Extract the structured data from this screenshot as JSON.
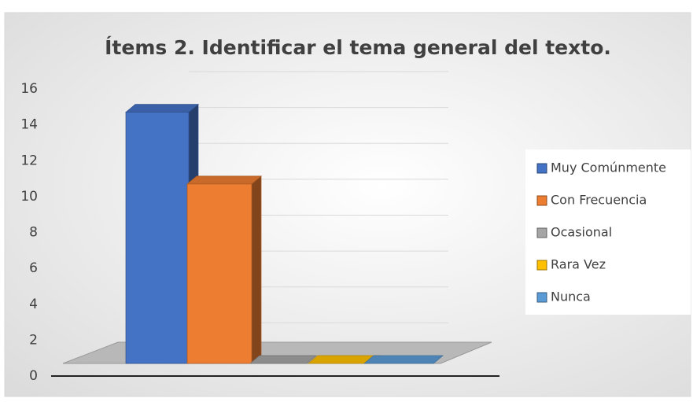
{
  "chart_data": {
    "type": "bar3d",
    "title": "Ítems 2. Identificar el tema general del texto.",
    "categories": [
      null
    ],
    "series": [
      {
        "name": "Muy Comúnmente",
        "color": "#4472c4",
        "values": [
          14
        ]
      },
      {
        "name": "Con Frecuencia",
        "color": "#ed7d31",
        "values": [
          10
        ]
      },
      {
        "name": "Ocasional",
        "color": "#a5a5a5",
        "values": [
          0
        ]
      },
      {
        "name": "Rara Vez",
        "color": "#ffc000",
        "values": [
          0
        ]
      },
      {
        "name": "Nunca",
        "color": "#5b9bd5",
        "values": [
          0
        ]
      }
    ],
    "ylim": [
      0,
      16
    ],
    "yticks": [
      0,
      2,
      4,
      6,
      8,
      10,
      12,
      14,
      16
    ],
    "grid": true,
    "legend": "right"
  }
}
